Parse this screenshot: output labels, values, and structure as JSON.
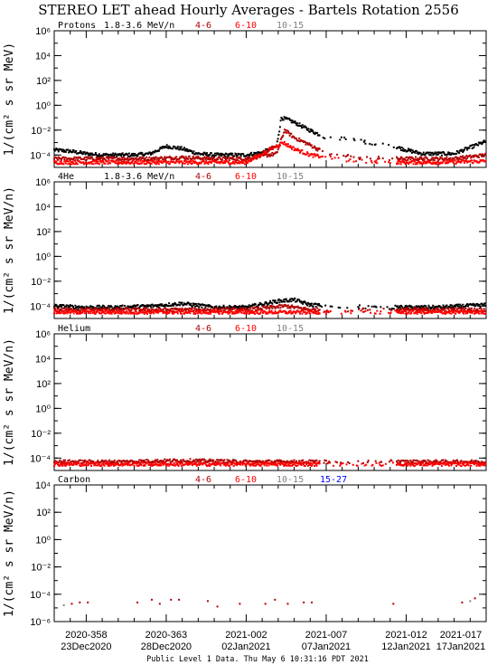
{
  "title": "STEREO LET ahead Hourly Averages - Bartels Rotation 2556",
  "footer": "Public Level 1 Data.  Thu May  6 10:31:16 PDT 2021",
  "colors": {
    "black": "#000000",
    "darkred": "#b00000",
    "red": "#ff0000",
    "gray": "#808080",
    "blue": "#0000ff"
  },
  "chart_data": [
    {
      "type": "scatter",
      "species": "Protons",
      "energy": "1.8-3.6 MeV/n",
      "legend": [
        {
          "label": "4-6",
          "color": "#b00000"
        },
        {
          "label": "6-10",
          "color": "#ff0000"
        },
        {
          "label": "10-15",
          "color": "#808080"
        }
      ],
      "ylabel": "1/(cm² s sr MeV)",
      "ylim_log10": [
        -5,
        6
      ],
      "yticks": [
        "10⁶",
        "10⁴",
        "10²",
        "10⁰",
        "10⁻²",
        "10⁻⁴"
      ],
      "xlim_day": [
        356,
        383
      ],
      "scale": "log",
      "series": [
        {
          "name": "1.8-3.6 MeV/n",
          "color": "#000000",
          "points": [
            [
              356,
              -3.6
            ],
            [
              357,
              -3.7
            ],
            [
              358,
              -3.9
            ],
            [
              359,
              -4.0
            ],
            [
              360,
              -4.0
            ],
            [
              361,
              -4.0
            ],
            [
              362,
              -3.9
            ],
            [
              363,
              -3.3
            ],
            [
              364,
              -3.5
            ],
            [
              365,
              -3.9
            ],
            [
              366,
              -4.0
            ],
            [
              367,
              -4.0
            ],
            [
              368,
              -4.0
            ],
            [
              369,
              -3.8
            ],
            [
              369.9,
              -3.3
            ],
            [
              370.2,
              -1.0
            ],
            [
              370.7,
              -1.2
            ],
            [
              371.2,
              -1.5
            ],
            [
              371.8,
              -1.9
            ],
            [
              372.3,
              -2.2
            ],
            [
              373,
              -2.6
            ],
            [
              374.5,
              -2.7
            ],
            [
              375.5,
              -3.0
            ],
            [
              376,
              -3.1
            ],
            [
              377,
              -3.2
            ],
            [
              378,
              -3.6
            ],
            [
              379,
              -3.9
            ],
            [
              380,
              -3.9
            ],
            [
              381,
              -3.9
            ],
            [
              382,
              -3.4
            ],
            [
              383,
              -2.9
            ]
          ]
        },
        {
          "name": "4-6",
          "color": "#b00000",
          "points": [
            [
              356,
              -4.3
            ],
            [
              358,
              -4.3
            ],
            [
              360,
              -4.3
            ],
            [
              362,
              -4.3
            ],
            [
              364,
              -4.2
            ],
            [
              366,
              -4.3
            ],
            [
              368,
              -4.3
            ],
            [
              369.9,
              -3.9
            ],
            [
              370.4,
              -2.0
            ],
            [
              371,
              -2.6
            ],
            [
              372,
              -3.2
            ],
            [
              373,
              -3.9
            ],
            [
              375,
              -4.2
            ],
            [
              377,
              -4.3
            ],
            [
              379,
              -4.3
            ],
            [
              381,
              -4.3
            ],
            [
              383,
              -4.0
            ]
          ]
        },
        {
          "name": "6-10",
          "color": "#ff0000",
          "points": [
            [
              356,
              -4.6
            ],
            [
              359,
              -4.6
            ],
            [
              362,
              -4.6
            ],
            [
              365,
              -4.6
            ],
            [
              368,
              -4.6
            ],
            [
              370.3,
              -3.0
            ],
            [
              371,
              -3.5
            ],
            [
              372,
              -4.0
            ],
            [
              374,
              -4.4
            ],
            [
              377,
              -4.6
            ],
            [
              380,
              -4.6
            ],
            [
              383,
              -4.5
            ]
          ]
        }
      ]
    },
    {
      "type": "scatter",
      "species": "4He",
      "energy": "1.8-3.6 MeV/n",
      "legend": [
        {
          "label": "4-6",
          "color": "#b00000"
        },
        {
          "label": "6-10",
          "color": "#ff0000"
        },
        {
          "label": "10-15",
          "color": "#808080"
        }
      ],
      "ylabel": "1/(cm² s sr MeV/n)",
      "ylim_log10": [
        -5,
        6
      ],
      "yticks": [
        "10⁶",
        "10⁴",
        "10²",
        "10⁰",
        "10⁻²",
        "10⁻⁴"
      ],
      "xlim_day": [
        356,
        383
      ],
      "scale": "log",
      "series": [
        {
          "name": "1.8-3.6 MeV/n",
          "color": "#000000",
          "points": [
            [
              356,
              -4.0
            ],
            [
              358,
              -4.1
            ],
            [
              360,
              -4.1
            ],
            [
              362,
              -4.0
            ],
            [
              364,
              -3.8
            ],
            [
              366,
              -4.1
            ],
            [
              368,
              -4.1
            ],
            [
              370,
              -3.6
            ],
            [
              371,
              -3.5
            ],
            [
              372,
              -3.9
            ],
            [
              373.5,
              -4.0
            ],
            [
              376,
              -4.1
            ],
            [
              378,
              -4.1
            ],
            [
              380,
              -4.1
            ],
            [
              383,
              -3.9
            ]
          ]
        },
        {
          "name": "4-6",
          "color": "#b00000",
          "points": [
            [
              356,
              -4.3
            ],
            [
              360,
              -4.3
            ],
            [
              364,
              -4.3
            ],
            [
              368,
              -4.3
            ],
            [
              370.5,
              -4.0
            ],
            [
              372,
              -4.3
            ],
            [
              376,
              -4.3
            ],
            [
              380,
              -4.3
            ],
            [
              383,
              -4.3
            ]
          ]
        },
        {
          "name": "6-10",
          "color": "#ff0000",
          "points": [
            [
              356,
              -4.5
            ],
            [
              360,
              -4.5
            ],
            [
              364,
              -4.5
            ],
            [
              368,
              -4.5
            ],
            [
              372,
              -4.5
            ],
            [
              376,
              -4.5
            ],
            [
              380,
              -4.5
            ],
            [
              383,
              -4.5
            ]
          ]
        }
      ]
    },
    {
      "type": "scatter",
      "species": "Helium",
      "energy": "",
      "legend": [
        {
          "label": "4-6",
          "color": "#b00000"
        },
        {
          "label": "6-10",
          "color": "#ff0000"
        },
        {
          "label": "10-15",
          "color": "#808080"
        }
      ],
      "ylabel": "1/(cm² s sr MeV/n)",
      "ylim_log10": [
        -5,
        6
      ],
      "yticks": [
        "10⁶",
        "10⁴",
        "10²",
        "10⁰",
        "10⁻²",
        "10⁻⁴"
      ],
      "xlim_day": [
        356,
        383
      ],
      "scale": "log",
      "series": [
        {
          "name": "4-6",
          "color": "#b00000",
          "points": [
            [
              356,
              -4.3
            ],
            [
              360,
              -4.3
            ],
            [
              364,
              -4.2
            ],
            [
              368,
              -4.3
            ],
            [
              372,
              -4.3
            ],
            [
              376,
              -4.3
            ],
            [
              380,
              -4.3
            ],
            [
              383,
              -4.3
            ]
          ]
        },
        {
          "name": "6-10",
          "color": "#ff0000",
          "points": [
            [
              356,
              -4.5
            ],
            [
              360,
              -4.5
            ],
            [
              364,
              -4.5
            ],
            [
              368,
              -4.5
            ],
            [
              372,
              -4.5
            ],
            [
              376,
              -4.5
            ],
            [
              380,
              -4.5
            ],
            [
              383,
              -4.5
            ]
          ]
        }
      ]
    },
    {
      "type": "scatter",
      "species": "Carbon",
      "energy": "",
      "legend": [
        {
          "label": "4-6",
          "color": "#b00000"
        },
        {
          "label": "6-10",
          "color": "#ff0000"
        },
        {
          "label": "10-15",
          "color": "#808080"
        },
        {
          "label": "15-27",
          "color": "#0000ff"
        }
      ],
      "ylabel": "1/(cm² s sr MeV/n)",
      "ylim_log10": [
        -6,
        4
      ],
      "yticks": [
        "10⁴",
        "10²",
        "10⁰",
        "10⁻²",
        "10⁻⁴",
        "10⁻⁶"
      ],
      "xlim_day": [
        356,
        383
      ],
      "scale": "log",
      "series": [
        {
          "name": "4-6",
          "color": "#b00000",
          "points": [
            [
              357.1,
              -4.7
            ],
            [
              357.6,
              -4.6
            ],
            [
              358.1,
              -4.6
            ],
            [
              361.2,
              -4.6
            ],
            [
              362.1,
              -4.4
            ],
            [
              362.6,
              -4.7
            ],
            [
              363.3,
              -4.4
            ],
            [
              363.8,
              -4.4
            ],
            [
              365.6,
              -4.5
            ],
            [
              366.2,
              -4.9
            ],
            [
              367.6,
              -4.7
            ],
            [
              369.2,
              -4.7
            ],
            [
              369.8,
              -4.4
            ],
            [
              370.6,
              -4.7
            ],
            [
              371.6,
              -4.6
            ],
            [
              372.1,
              -4.6
            ],
            [
              377.2,
              -4.7
            ],
            [
              381.5,
              -4.6
            ],
            [
              382.3,
              -4.3
            ]
          ]
        },
        {
          "name": "10-15",
          "color": "#808080",
          "points": [
            [
              356.6,
              -4.8
            ],
            [
              382.0,
              -4.5
            ]
          ]
        }
      ]
    }
  ],
  "xaxis": {
    "ticks": [
      {
        "day": 358,
        "top": "2020-358",
        "bottom": "23Dec2020"
      },
      {
        "day": 363,
        "top": "2020-363",
        "bottom": "28Dec2020"
      },
      {
        "day": 368,
        "top": "2021-002",
        "bottom": "02Jan2021"
      },
      {
        "day": 373,
        "top": "2021-007",
        "bottom": "07Jan2021"
      },
      {
        "day": 378,
        "top": "2021-012",
        "bottom": "12Jan2021"
      },
      {
        "day": 383,
        "top": "2021-017",
        "bottom": "17Jan2021"
      }
    ]
  }
}
